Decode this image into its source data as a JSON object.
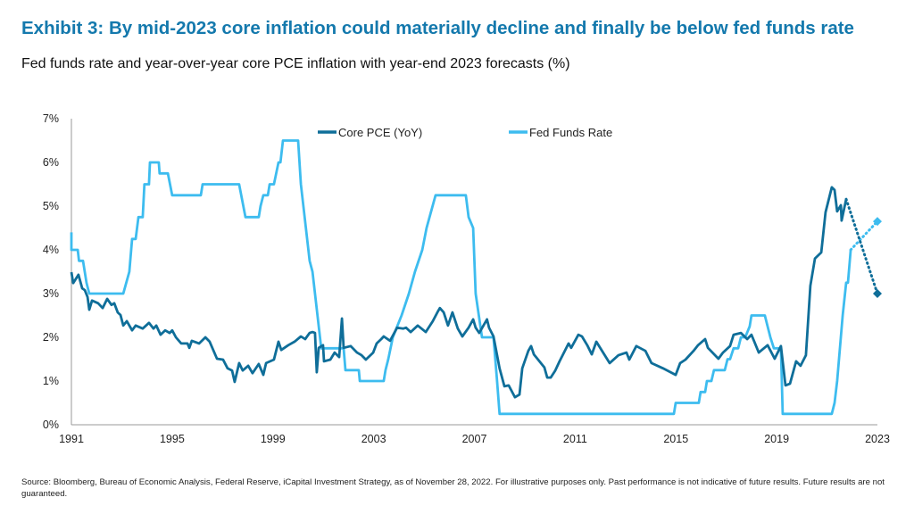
{
  "title": "Exhibit 3: By mid-2023 core inflation could materially decline and finally be below fed funds rate",
  "subtitle": "Fed  funds rate and year-over-year core PCE inflation with year-end 2023 forecasts (%)",
  "source": "Source: Bloomberg, Bureau of Economic Analysis, Federal Reserve, iCapital Investment Strategy, as of November 28, 2022. For illustrative purposes only. Past performance is not indicative of future results. Future results are not guaranteed.",
  "chart_data": {
    "type": "line",
    "xlim": [
      1991,
      2023
    ],
    "ylim": [
      0,
      7
    ],
    "x_ticks": [
      "1991",
      "1995",
      "1999",
      "2003",
      "2007",
      "2011",
      "2015",
      "2019",
      "2023"
    ],
    "y_ticks": [
      "0%",
      "1%",
      "2%",
      "3%",
      "4%",
      "5%",
      "6%",
      "7%"
    ],
    "legend_position": "top-center",
    "grid": false,
    "series": [
      {
        "name": "Core PCE (YoY)",
        "color": "#0f6e99",
        "points": [
          [
            1991.0,
            3.49
          ],
          [
            1991.07,
            3.24
          ],
          [
            1991.28,
            3.43
          ],
          [
            1991.43,
            3.12
          ],
          [
            1991.53,
            3.08
          ],
          [
            1991.64,
            2.92
          ],
          [
            1991.71,
            2.63
          ],
          [
            1991.82,
            2.84
          ],
          [
            1992.06,
            2.78
          ],
          [
            1992.24,
            2.67
          ],
          [
            1992.42,
            2.88
          ],
          [
            1992.59,
            2.74
          ],
          [
            1992.7,
            2.78
          ],
          [
            1992.84,
            2.57
          ],
          [
            1992.95,
            2.51
          ],
          [
            1993.06,
            2.27
          ],
          [
            1993.2,
            2.37
          ],
          [
            1993.41,
            2.16
          ],
          [
            1993.55,
            2.27
          ],
          [
            1993.83,
            2.2
          ],
          [
            1994.08,
            2.33
          ],
          [
            1994.26,
            2.2
          ],
          [
            1994.37,
            2.27
          ],
          [
            1994.54,
            2.06
          ],
          [
            1994.72,
            2.16
          ],
          [
            1994.9,
            2.1
          ],
          [
            1995.0,
            2.16
          ],
          [
            1995.15,
            2.0
          ],
          [
            1995.36,
            1.86
          ],
          [
            1995.61,
            1.86
          ],
          [
            1995.68,
            1.76
          ],
          [
            1995.78,
            1.92
          ],
          [
            1996.07,
            1.86
          ],
          [
            1996.32,
            2.0
          ],
          [
            1996.49,
            1.9
          ],
          [
            1996.78,
            1.51
          ],
          [
            1997.02,
            1.49
          ],
          [
            1997.2,
            1.29
          ],
          [
            1997.38,
            1.24
          ],
          [
            1997.48,
            0.98
          ],
          [
            1997.66,
            1.41
          ],
          [
            1997.8,
            1.24
          ],
          [
            1998.02,
            1.35
          ],
          [
            1998.19,
            1.18
          ],
          [
            1998.44,
            1.39
          ],
          [
            1998.62,
            1.14
          ],
          [
            1998.73,
            1.41
          ],
          [
            1999.04,
            1.49
          ],
          [
            1999.22,
            1.9
          ],
          [
            1999.33,
            1.71
          ],
          [
            1999.61,
            1.82
          ],
          [
            1999.86,
            1.9
          ],
          [
            2000.11,
            2.02
          ],
          [
            2000.28,
            1.96
          ],
          [
            2000.46,
            2.1
          ],
          [
            2000.57,
            2.12
          ],
          [
            2000.67,
            2.1
          ],
          [
            2000.74,
            1.2
          ],
          [
            2000.82,
            1.76
          ],
          [
            2000.99,
            1.82
          ],
          [
            2001.03,
            1.45
          ],
          [
            2001.28,
            1.49
          ],
          [
            2001.45,
            1.65
          ],
          [
            2001.63,
            1.55
          ],
          [
            2001.74,
            2.43
          ],
          [
            2001.81,
            1.76
          ],
          [
            2002.09,
            1.8
          ],
          [
            2002.34,
            1.65
          ],
          [
            2002.52,
            1.59
          ],
          [
            2002.69,
            1.49
          ],
          [
            2002.98,
            1.65
          ],
          [
            2003.12,
            1.86
          ],
          [
            2003.3,
            1.96
          ],
          [
            2003.4,
            2.02
          ],
          [
            2003.65,
            1.92
          ],
          [
            2003.93,
            2.22
          ],
          [
            2004.18,
            2.2
          ],
          [
            2004.29,
            2.22
          ],
          [
            2004.47,
            2.12
          ],
          [
            2004.75,
            2.27
          ],
          [
            2005.07,
            2.12
          ],
          [
            2005.35,
            2.37
          ],
          [
            2005.53,
            2.57
          ],
          [
            2005.63,
            2.67
          ],
          [
            2005.78,
            2.57
          ],
          [
            2005.95,
            2.27
          ],
          [
            2006.13,
            2.57
          ],
          [
            2006.34,
            2.2
          ],
          [
            2006.52,
            2.02
          ],
          [
            2006.77,
            2.22
          ],
          [
            2006.95,
            2.41
          ],
          [
            2007.05,
            2.22
          ],
          [
            2007.19,
            2.1
          ],
          [
            2007.5,
            2.41
          ],
          [
            2007.58,
            2.22
          ],
          [
            2007.76,
            2.02
          ],
          [
            2008.0,
            1.29
          ],
          [
            2008.19,
            0.88
          ],
          [
            2008.36,
            0.9
          ],
          [
            2008.61,
            0.63
          ],
          [
            2008.79,
            0.69
          ],
          [
            2008.9,
            1.29
          ],
          [
            2009.14,
            1.69
          ],
          [
            2009.25,
            1.8
          ],
          [
            2009.36,
            1.61
          ],
          [
            2009.78,
            1.31
          ],
          [
            2009.89,
            1.08
          ],
          [
            2010.03,
            1.08
          ],
          [
            2010.21,
            1.24
          ],
          [
            2010.38,
            1.45
          ],
          [
            2010.74,
            1.86
          ],
          [
            2010.84,
            1.76
          ],
          [
            2011.13,
            2.06
          ],
          [
            2011.27,
            2.02
          ],
          [
            2011.48,
            1.82
          ],
          [
            2011.66,
            1.61
          ],
          [
            2011.84,
            1.9
          ],
          [
            2012.37,
            1.41
          ],
          [
            2012.72,
            1.59
          ],
          [
            2013.04,
            1.65
          ],
          [
            2013.15,
            1.49
          ],
          [
            2013.43,
            1.8
          ],
          [
            2013.79,
            1.69
          ],
          [
            2014.03,
            1.41
          ],
          [
            2014.49,
            1.29
          ],
          [
            2014.99,
            1.14
          ],
          [
            2015.17,
            1.41
          ],
          [
            2015.38,
            1.49
          ],
          [
            2015.7,
            1.69
          ],
          [
            2015.88,
            1.82
          ],
          [
            2016.16,
            1.96
          ],
          [
            2016.27,
            1.76
          ],
          [
            2016.69,
            1.51
          ],
          [
            2016.87,
            1.65
          ],
          [
            2017.15,
            1.8
          ],
          [
            2017.29,
            2.06
          ],
          [
            2017.58,
            2.1
          ],
          [
            2017.83,
            1.96
          ],
          [
            2018.0,
            2.06
          ],
          [
            2018.29,
            1.65
          ],
          [
            2018.64,
            1.82
          ],
          [
            2018.92,
            1.51
          ],
          [
            2019.17,
            1.8
          ],
          [
            2019.35,
            0.9
          ],
          [
            2019.53,
            0.94
          ],
          [
            2019.77,
            1.45
          ],
          [
            2019.95,
            1.35
          ],
          [
            2020.16,
            1.59
          ],
          [
            2020.34,
            3.18
          ],
          [
            2020.52,
            3.8
          ],
          [
            2020.77,
            3.94
          ],
          [
            2020.94,
            4.86
          ],
          [
            2021.19,
            5.43
          ],
          [
            2021.3,
            5.37
          ],
          [
            2021.4,
            4.88
          ],
          [
            2021.55,
            5.02
          ],
          [
            2021.58,
            4.67
          ],
          [
            2021.76,
            5.16
          ]
        ],
        "forecast": [
          [
            2021.76,
            5.16
          ],
          [
            2023,
            3.0
          ]
        ]
      },
      {
        "name": "Fed Funds Rate",
        "color": "#3dbcef",
        "points": [
          [
            1991.0,
            4.4
          ],
          [
            1991.0,
            4.0
          ],
          [
            1991.25,
            4.0
          ],
          [
            1991.3,
            3.75
          ],
          [
            1991.46,
            3.75
          ],
          [
            1991.6,
            3.25
          ],
          [
            1991.71,
            3.0
          ],
          [
            1993.06,
            3.0
          ],
          [
            1993.3,
            3.5
          ],
          [
            1993.41,
            4.25
          ],
          [
            1993.55,
            4.25
          ],
          [
            1993.66,
            4.75
          ],
          [
            1993.83,
            4.75
          ],
          [
            1993.9,
            5.5
          ],
          [
            1994.08,
            5.5
          ],
          [
            1994.12,
            6.0
          ],
          [
            1994.47,
            6.0
          ],
          [
            1994.5,
            5.75
          ],
          [
            1994.83,
            5.75
          ],
          [
            1995.0,
            5.25
          ],
          [
            1996.14,
            5.25
          ],
          [
            1996.21,
            5.5
          ],
          [
            1997.66,
            5.5
          ],
          [
            1997.91,
            4.75
          ],
          [
            1998.44,
            4.75
          ],
          [
            1998.51,
            5.0
          ],
          [
            1998.62,
            5.25
          ],
          [
            1998.8,
            5.25
          ],
          [
            1998.87,
            5.5
          ],
          [
            1999.04,
            5.5
          ],
          [
            1999.22,
            6.0
          ],
          [
            1999.3,
            6.0
          ],
          [
            1999.4,
            6.5
          ],
          [
            2000.0,
            6.5
          ],
          [
            2000.11,
            5.5
          ],
          [
            2000.46,
            3.75
          ],
          [
            2000.57,
            3.5
          ],
          [
            2000.67,
            3.0
          ],
          [
            2000.92,
            1.75
          ],
          [
            2001.81,
            1.75
          ],
          [
            2001.88,
            1.25
          ],
          [
            2002.41,
            1.25
          ],
          [
            2002.45,
            1.0
          ],
          [
            2003.4,
            1.0
          ],
          [
            2003.47,
            1.25
          ],
          [
            2003.58,
            1.5
          ],
          [
            2003.76,
            2.0
          ],
          [
            2004.11,
            2.5
          ],
          [
            2004.4,
            3.0
          ],
          [
            2004.64,
            3.5
          ],
          [
            2004.93,
            4.0
          ],
          [
            2005.1,
            4.5
          ],
          [
            2005.46,
            5.25
          ],
          [
            2006.66,
            5.25
          ],
          [
            2006.77,
            4.75
          ],
          [
            2006.95,
            4.5
          ],
          [
            2007.05,
            3.0
          ],
          [
            2007.3,
            2.0
          ],
          [
            2007.76,
            2.0
          ],
          [
            2007.9,
            1.0
          ],
          [
            2008.0,
            0.25
          ],
          [
            2014.92,
            0.25
          ],
          [
            2014.99,
            0.5
          ],
          [
            2015.91,
            0.5
          ],
          [
            2015.98,
            0.75
          ],
          [
            2016.16,
            0.75
          ],
          [
            2016.23,
            1.0
          ],
          [
            2016.41,
            1.0
          ],
          [
            2016.51,
            1.25
          ],
          [
            2016.94,
            1.25
          ],
          [
            2017.05,
            1.5
          ],
          [
            2017.15,
            1.5
          ],
          [
            2017.29,
            1.75
          ],
          [
            2017.47,
            1.75
          ],
          [
            2017.58,
            2.0
          ],
          [
            2017.75,
            2.0
          ],
          [
            2017.93,
            2.25
          ],
          [
            2018.0,
            2.5
          ],
          [
            2018.53,
            2.5
          ],
          [
            2018.64,
            2.25
          ],
          [
            2018.75,
            2.0
          ],
          [
            2018.89,
            1.75
          ],
          [
            2019.17,
            1.75
          ],
          [
            2019.24,
            0.25
          ],
          [
            2021.19,
            0.25
          ],
          [
            2021.3,
            0.5
          ],
          [
            2021.4,
            1.0
          ],
          [
            2021.51,
            1.75
          ],
          [
            2021.62,
            2.5
          ],
          [
            2021.76,
            3.25
          ],
          [
            2021.83,
            3.25
          ],
          [
            2021.94,
            4.0
          ]
        ],
        "forecast": [
          [
            2021.94,
            4.0
          ],
          [
            2023,
            4.65
          ]
        ]
      }
    ]
  }
}
